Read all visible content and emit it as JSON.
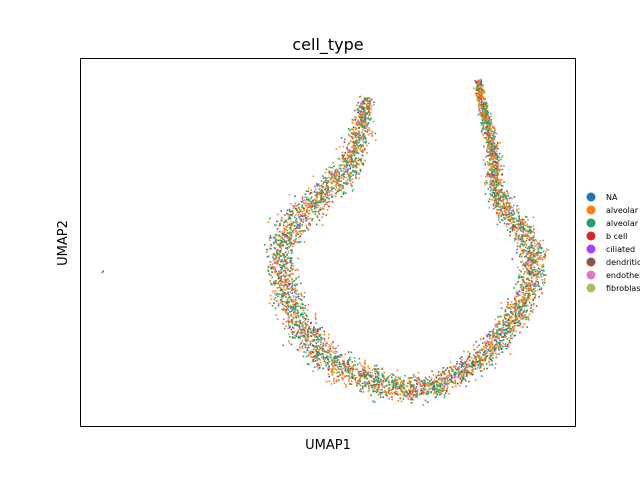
{
  "chart_data": {
    "type": "scatter",
    "title": "cell_type",
    "xlabel": "UMAP1",
    "ylabel": "UMAP2",
    "grid": false,
    "ticks": false,
    "legend_placement": "right",
    "legend": [
      {
        "label": "NA",
        "color": "#1f77b4"
      },
      {
        "label": "alveolar",
        "color": "#ff7f0e"
      },
      {
        "label": "alveolar",
        "color": "#279e68"
      },
      {
        "label": "b cell",
        "color": "#d62728"
      },
      {
        "label": "ciliated",
        "color": "#aa40fc"
      },
      {
        "label": "dendritic",
        "color": "#8c564b"
      },
      {
        "label": "endothel",
        "color": "#e377c2"
      },
      {
        "label": "fibroblas",
        "color": "#b5bd61"
      }
    ],
    "point_mix": [
      0.02,
      0.33,
      0.35,
      0.04,
      0.02,
      0.07,
      0.1,
      0.07
    ]
  }
}
